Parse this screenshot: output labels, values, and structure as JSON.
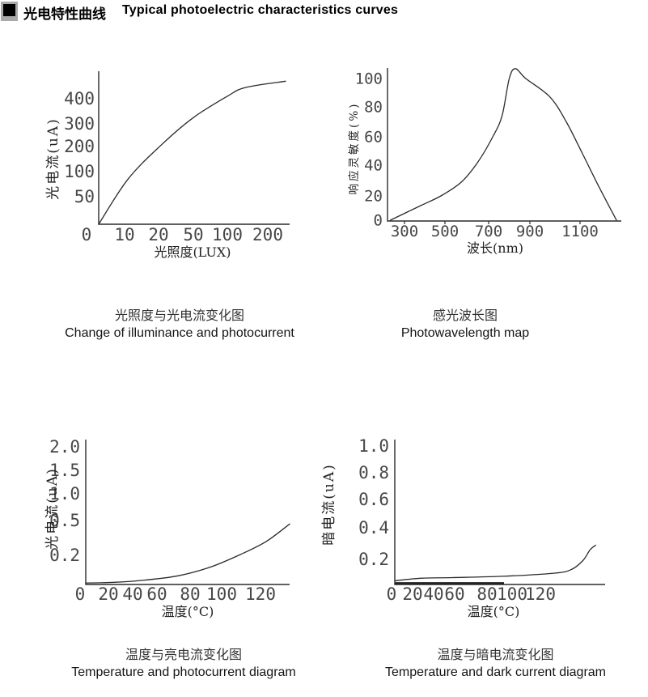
{
  "page": {
    "title_cn": "光电特性曲线",
    "title_en": "Typical photoelectric characteristics curves",
    "bullet_icon": "black-square",
    "background": "#ffffff",
    "line_color": "#2b2b2b",
    "tick_text_color": "#474747"
  },
  "chart_data": [
    {
      "id": "illuminance-photocurrent",
      "type": "line",
      "caption_cn": "光照度与光电流变化图",
      "caption_en": "Change of illuminance and photocurrent",
      "xlabel": "光照度(LUX)",
      "ylabel": "光电流(uA)",
      "x_tick_labels": [
        "0",
        "10",
        "20",
        "50",
        "100",
        "200"
      ],
      "y_tick_labels": [
        "50",
        "100",
        "200",
        "300",
        "400"
      ],
      "axis_note": "both axes use non-linear compressed tick spacing",
      "points": [
        [
          0,
          0
        ],
        [
          11,
          85
        ],
        [
          23,
          210
        ],
        [
          50,
          325
        ],
        [
          100,
          410
        ],
        [
          145,
          445
        ],
        [
          244,
          470
        ]
      ]
    },
    {
      "id": "photo-wavelength",
      "type": "line",
      "caption_cn": "感光波长图",
      "caption_en": "Photowavelength map",
      "xlabel": "波长(nm)",
      "ylabel": "响应灵敏度(%)",
      "x_tick_labels": [
        "300",
        "500",
        "700",
        "900",
        "1100"
      ],
      "y_tick_labels": [
        "0",
        "20",
        "40",
        "60",
        "80",
        "100"
      ],
      "axis_note": "bell curve peaking ~107% near 830nm, zero near 250nm and 1250nm",
      "points": [
        [
          230,
          0
        ],
        [
          380,
          12
        ],
        [
          480,
          20
        ],
        [
          575,
          29
        ],
        [
          650,
          42
        ],
        [
          720,
          60
        ],
        [
          765,
          74
        ],
        [
          800,
          100
        ],
        [
          830,
          107
        ],
        [
          880,
          100
        ],
        [
          980,
          87
        ],
        [
          1045,
          70
        ],
        [
          1110,
          48
        ],
        [
          1175,
          26
        ],
        [
          1245,
          0
        ]
      ]
    },
    {
      "id": "temperature-photocurrent",
      "type": "line",
      "caption_cn": "温度与亮电流变化图",
      "caption_en": "Temperature and photocurrent diagram",
      "xlabel": "温度(°C)",
      "ylabel": "光电流(uA)",
      "x_tick_labels": [
        "0",
        "20",
        "40",
        "60",
        "80",
        "100",
        "120"
      ],
      "y_tick_labels": [
        "0.2",
        "0.5",
        "1.0",
        "1.5",
        "2.0"
      ],
      "axis_note": "y axis non-linear; curve rises slowly to ~0.5uA at ~135°C",
      "points": [
        [
          0,
          0.01
        ],
        [
          25,
          0.015
        ],
        [
          50,
          0.03
        ],
        [
          73,
          0.06
        ],
        [
          93,
          0.12
        ],
        [
          110,
          0.21
        ],
        [
          123,
          0.32
        ],
        [
          135,
          0.47
        ]
      ]
    },
    {
      "id": "temperature-darkcurrent",
      "type": "line",
      "caption_cn": "温度与暗电流变化图",
      "caption_en": "Temperature and dark current diagram",
      "xlabel": "温度(°C)",
      "ylabel": "暗电流(uA)",
      "x_tick_labels": [
        "0",
        "20",
        "40",
        "60",
        "80",
        "100",
        "120"
      ],
      "y_tick_labels": [
        "0.2",
        "0.4",
        "0.6",
        "0.8",
        "1.0"
      ],
      "axis_note": "nearly flat ~0.05uA then sharp rise to ~0.3uA past 120°C",
      "points": [
        [
          0,
          0.03
        ],
        [
          28,
          0.05
        ],
        [
          58,
          0.055
        ],
        [
          92,
          0.065
        ],
        [
          130,
          0.09
        ],
        [
          142,
          0.12
        ],
        [
          150,
          0.19
        ],
        [
          155,
          0.26
        ],
        [
          159,
          0.29
        ]
      ]
    }
  ]
}
